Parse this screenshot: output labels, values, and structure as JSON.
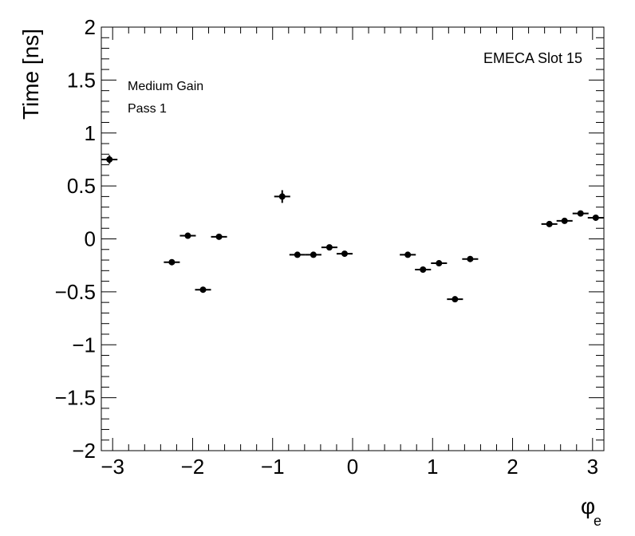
{
  "chart_data": {
    "type": "scatter",
    "xlabel": "φ",
    "xlabel_subscript": "e",
    "ylabel": "Time [ns]",
    "xlim": [
      -3.1416,
      3.1416
    ],
    "ylim": [
      -2,
      2
    ],
    "x_ticks": [
      -3,
      -2,
      -1,
      0,
      1,
      2,
      3
    ],
    "x_tick_labels": [
      "−3",
      "−2",
      "−1",
      "0",
      "1",
      "2",
      "3"
    ],
    "y_ticks": [
      -2,
      -1.5,
      -1,
      -0.5,
      0,
      0.5,
      1,
      1.5,
      2
    ],
    "y_tick_labels": [
      "−2",
      "−1.5",
      "−1",
      "−0.5",
      "0",
      "0.5",
      "1",
      "1.5",
      "2"
    ],
    "grid": false,
    "annotations": [
      "Medium Gain",
      "Pass 1"
    ],
    "label_top_right": "EMECA Slot 15",
    "points": [
      {
        "x": -3.04,
        "y": 0.75,
        "xerr": 0.1,
        "yerr": 0.04
      },
      {
        "x": -2.26,
        "y": -0.22,
        "xerr": 0.1,
        "yerr": 0.02
      },
      {
        "x": -2.06,
        "y": 0.03,
        "xerr": 0.1,
        "yerr": 0.02
      },
      {
        "x": -1.87,
        "y": -0.48,
        "xerr": 0.1,
        "yerr": 0.02
      },
      {
        "x": -1.67,
        "y": 0.02,
        "xerr": 0.1,
        "yerr": 0.02
      },
      {
        "x": -0.88,
        "y": 0.4,
        "xerr": 0.1,
        "yerr": 0.06
      },
      {
        "x": -0.69,
        "y": -0.15,
        "xerr": 0.1,
        "yerr": 0.02
      },
      {
        "x": -0.49,
        "y": -0.15,
        "xerr": 0.1,
        "yerr": 0.02
      },
      {
        "x": -0.29,
        "y": -0.08,
        "xerr": 0.1,
        "yerr": 0.02
      },
      {
        "x": -0.1,
        "y": -0.14,
        "xerr": 0.1,
        "yerr": 0.02
      },
      {
        "x": 0.69,
        "y": -0.15,
        "xerr": 0.1,
        "yerr": 0.02
      },
      {
        "x": 0.88,
        "y": -0.29,
        "xerr": 0.1,
        "yerr": 0.02
      },
      {
        "x": 1.08,
        "y": -0.23,
        "xerr": 0.1,
        "yerr": 0.02
      },
      {
        "x": 1.28,
        "y": -0.57,
        "xerr": 0.1,
        "yerr": 0.02
      },
      {
        "x": 1.47,
        "y": -0.19,
        "xerr": 0.1,
        "yerr": 0.02
      },
      {
        "x": 2.46,
        "y": 0.14,
        "xerr": 0.1,
        "yerr": 0.02
      },
      {
        "x": 2.65,
        "y": 0.17,
        "xerr": 0.1,
        "yerr": 0.02
      },
      {
        "x": 2.85,
        "y": 0.24,
        "xerr": 0.1,
        "yerr": 0.02
      },
      {
        "x": 3.04,
        "y": 0.2,
        "xerr": 0.1,
        "yerr": 0.02
      }
    ]
  }
}
